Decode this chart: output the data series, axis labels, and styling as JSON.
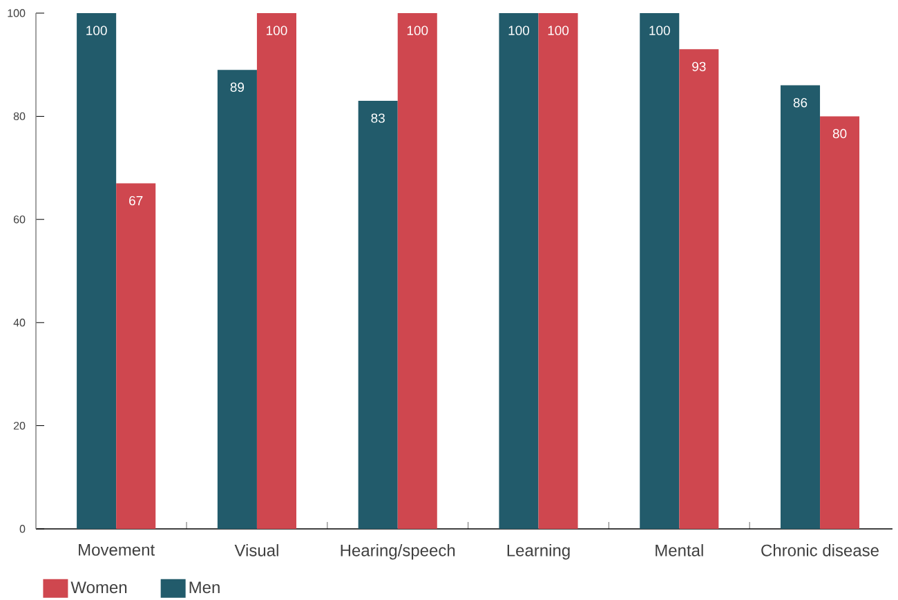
{
  "chart_data": {
    "type": "bar",
    "categories": [
      "Movement",
      "Visual",
      "Hearing/speech",
      "Learning",
      "Mental",
      "Chronic disease"
    ],
    "series": [
      {
        "name": "Men",
        "color": "#225b6b",
        "values": [
          100,
          89,
          83,
          100,
          100,
          86
        ]
      },
      {
        "name": "Women",
        "color": "#cf474f",
        "values": [
          67,
          100,
          100,
          100,
          93,
          80
        ]
      }
    ],
    "ylim": [
      0,
      100
    ],
    "yticks": [
      0,
      20,
      40,
      60,
      80,
      100
    ],
    "data_labels": true,
    "legend": "bottom left"
  }
}
